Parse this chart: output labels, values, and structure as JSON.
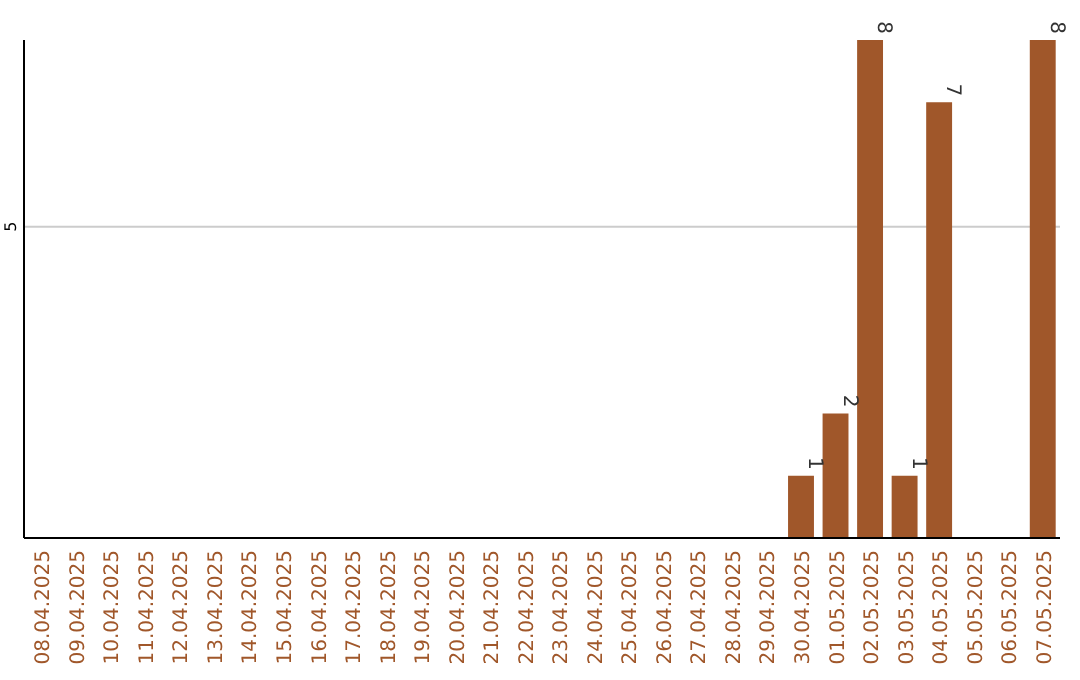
{
  "chart_data": {
    "type": "bar",
    "categories": [
      "08.04.2025",
      "09.04.2025",
      "10.04.2025",
      "11.04.2025",
      "12.04.2025",
      "13.04.2025",
      "14.04.2025",
      "15.04.2025",
      "16.04.2025",
      "17.04.2025",
      "18.04.2025",
      "19.04.2025",
      "20.04.2025",
      "21.04.2025",
      "22.04.2025",
      "23.04.2025",
      "24.04.2025",
      "25.04.2025",
      "26.04.2025",
      "27.04.2025",
      "28.04.2025",
      "29.04.2025",
      "30.04.2025",
      "01.05.2025",
      "02.05.2025",
      "03.05.2025",
      "04.05.2025",
      "05.05.2025",
      "06.05.2025",
      "07.05.2025"
    ],
    "values": [
      null,
      null,
      null,
      null,
      null,
      null,
      null,
      null,
      null,
      null,
      null,
      null,
      null,
      null,
      null,
      null,
      null,
      null,
      null,
      null,
      null,
      null,
      1,
      2,
      8,
      1,
      7,
      null,
      null,
      8
    ],
    "data_labels": true,
    "color": "#a0572a",
    "ylim": [
      0,
      8
    ],
    "yticks": [
      5
    ],
    "grid": "y"
  }
}
